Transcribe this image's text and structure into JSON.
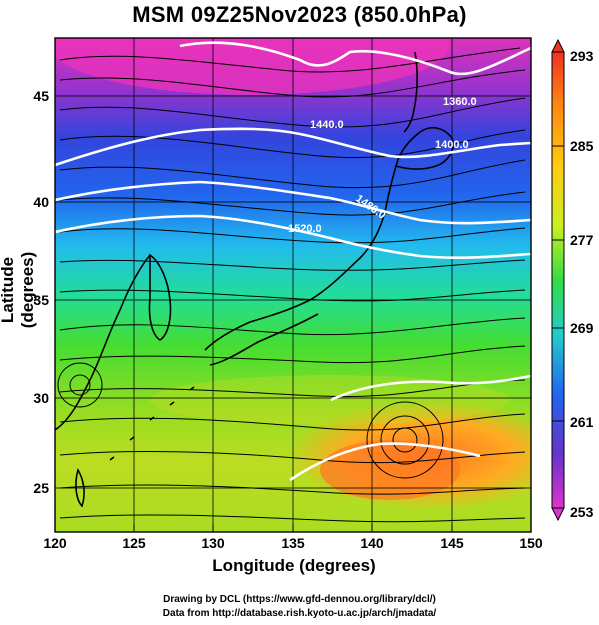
{
  "title": "MSM 09Z25Nov2023 (850.0hPa)",
  "x_axis": {
    "label": "Longitude (degrees)",
    "ticks": [
      "120",
      "125",
      "130",
      "135",
      "140",
      "145",
      "150"
    ],
    "range": [
      120,
      150
    ]
  },
  "y_axis": {
    "label": "Latitude  (degrees)",
    "ticks": [
      "25",
      "30",
      "35",
      "40",
      "45"
    ],
    "range": [
      22.4,
      47.6
    ]
  },
  "colorbar": {
    "ticks": [
      "293",
      "285",
      "277",
      "269",
      "261",
      "253"
    ],
    "range": [
      253,
      293
    ],
    "colors": [
      "#cc33cc",
      "#6633cc",
      "#2233dd",
      "#22aaee",
      "#22dd88",
      "#55dd22",
      "#ccee22",
      "#ffcc11",
      "#ff8811",
      "#ee3322"
    ]
  },
  "contours": {
    "labels": [
      "1360.0",
      "1400.0",
      "1440.0",
      "1480.0",
      "1520.0"
    ],
    "color": "#ffffff"
  },
  "credits": [
    "Drawing by DCL (https://www.gfd-dennou.org/library/dcl/)",
    "Data from http://database.rish.kyoto-u.ac.jp/arch/jmadata/"
  ]
}
